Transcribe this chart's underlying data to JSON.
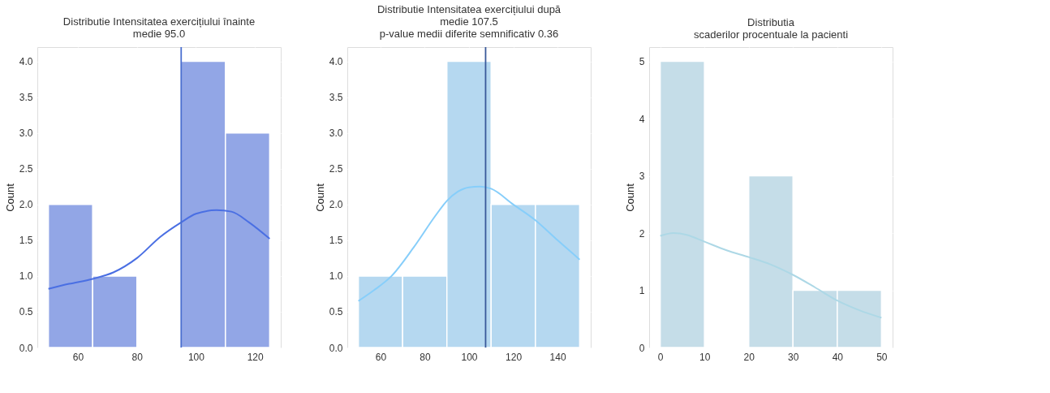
{
  "chart_data": [
    {
      "type": "histogram",
      "title": "Distributie Intensitatea exercițiului înainte\nmedie 95.0",
      "ylabel": "Count",
      "bins": [
        50,
        65,
        80,
        95,
        110,
        125
      ],
      "values": [
        2,
        1,
        0,
        4,
        3
      ],
      "color": "#92a6e6",
      "series": [
        {
          "type": "line",
          "color": "#4a6fe3",
          "x": [
            50,
            57,
            65,
            72,
            80,
            88,
            95,
            100,
            107,
            112,
            118,
            125
          ],
          "values": [
            0.82,
            0.89,
            0.96,
            1.05,
            1.25,
            1.55,
            1.75,
            1.87,
            1.92,
            1.9,
            1.75,
            1.52
          ]
        }
      ],
      "ref_lines": [
        {
          "axis": "x",
          "value": 95,
          "color": "#4a6fd0"
        }
      ],
      "xlim": [
        46.25,
        128.75
      ],
      "xticks": [
        60,
        80,
        100,
        120
      ],
      "ylim": [
        0,
        4.2
      ],
      "yticks": [
        {
          "value": 0,
          "label": "0.0"
        },
        0.5,
        {
          "value": 1,
          "label": "1.0"
        },
        1.5,
        {
          "value": 2,
          "label": "2.0"
        },
        2.5,
        {
          "value": 3,
          "label": "3.0"
        },
        3.5,
        {
          "value": 4,
          "label": "4.0"
        }
      ],
      "grid": true
    },
    {
      "type": "histogram",
      "title": "Distributie Intensitatea exercițiului după\nmedie 107.5\np-value medii diferite semnificativ 0.36",
      "ylabel": "Count",
      "bins": [
        50,
        70,
        90,
        110,
        130,
        150
      ],
      "values": [
        1,
        1,
        4,
        2,
        2
      ],
      "color": "#b5d8f0",
      "series": [
        {
          "type": "line",
          "color": "#87cefa",
          "x": [
            50,
            57,
            65,
            75,
            85,
            90,
            95,
            100,
            105,
            110,
            120,
            130,
            140,
            150
          ],
          "values": [
            0.65,
            0.8,
            1.0,
            1.4,
            1.85,
            2.05,
            2.18,
            2.24,
            2.25,
            2.22,
            2.0,
            1.78,
            1.5,
            1.23
          ]
        }
      ],
      "ref_lines": [
        {
          "axis": "x",
          "value": 107.5,
          "color": "#3a5a9a"
        }
      ],
      "xlim": [
        45,
        155
      ],
      "xticks": [
        60,
        80,
        100,
        120,
        140
      ],
      "ylim": [
        0,
        4.2
      ],
      "yticks": [
        {
          "value": 0,
          "label": "0.0"
        },
        0.5,
        {
          "value": 1,
          "label": "1.0"
        },
        1.5,
        {
          "value": 2,
          "label": "2.0"
        },
        2.5,
        {
          "value": 3,
          "label": "3.0"
        },
        3.5,
        {
          "value": 4,
          "label": "4.0"
        }
      ],
      "grid": true
    },
    {
      "type": "histogram",
      "title": "Distributia\nscaderilor procentuale la pacienti",
      "ylabel": "Count",
      "bins": [
        0,
        10,
        20,
        30,
        40,
        50
      ],
      "values": [
        5,
        0,
        3,
        1,
        1
      ],
      "color": "#c5dde8",
      "series": [
        {
          "type": "line",
          "color": "#add8e6",
          "x": [
            0,
            3,
            6,
            10,
            15,
            20,
            25,
            30,
            35,
            40,
            45,
            50
          ],
          "values": [
            1.95,
            2.0,
            1.97,
            1.85,
            1.7,
            1.58,
            1.45,
            1.27,
            1.05,
            0.82,
            0.65,
            0.52
          ]
        }
      ],
      "xlim": [
        -2.5,
        52.5
      ],
      "xticks": [
        0,
        10,
        20,
        30,
        40,
        50
      ],
      "ylim": [
        0,
        5.25
      ],
      "yticks": [
        0,
        1,
        2,
        3,
        4,
        5
      ],
      "grid": true
    }
  ]
}
